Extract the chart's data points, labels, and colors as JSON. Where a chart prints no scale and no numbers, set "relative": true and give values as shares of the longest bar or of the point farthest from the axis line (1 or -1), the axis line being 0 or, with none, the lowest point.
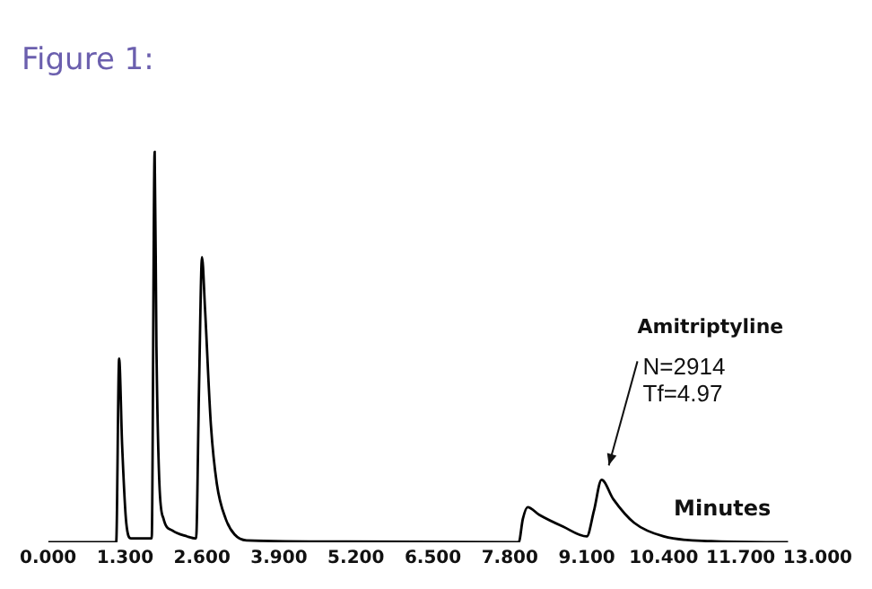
{
  "chart_data": {
    "type": "line",
    "title": "Figure 1:",
    "xlabel": "Minutes",
    "relative": true,
    "color": "#000000",
    "x": [
      0,
      1.15,
      1.2,
      1.25,
      1.32,
      1.4,
      1.75,
      1.8,
      1.83,
      1.88,
      1.95,
      2.1,
      2.35,
      2.5,
      2.55,
      2.6,
      2.65,
      2.75,
      2.85,
      3.0,
      3.15,
      3.35,
      5,
      7.95,
      8.02,
      8.1,
      8.3,
      8.7,
      9.1,
      9.22,
      9.35,
      9.55,
      9.9,
      10.4,
      11.2,
      12.5
    ],
    "values": [
      0,
      0,
      0.47,
      0.25,
      0.05,
      0.01,
      0.01,
      1.0,
      0.5,
      0.15,
      0.06,
      0.03,
      0.015,
      0.01,
      0.4,
      0.73,
      0.6,
      0.3,
      0.15,
      0.06,
      0.02,
      0.005,
      0.002,
      0,
      0.06,
      0.09,
      0.07,
      0.04,
      0.015,
      0.08,
      0.16,
      0.11,
      0.05,
      0.015,
      0.003,
      0
    ],
    "xlim": [
      0,
      13
    ],
    "xticks": [
      {
        "value": 0,
        "label": "0.000"
      },
      {
        "value": 1.3,
        "label": "1.300"
      },
      {
        "value": 2.6,
        "label": "2.600"
      },
      {
        "value": 3.9,
        "label": "3.900"
      },
      {
        "value": 5.2,
        "label": "5.200"
      },
      {
        "value": 6.5,
        "label": "6.500"
      },
      {
        "value": 7.8,
        "label": "7.800"
      },
      {
        "value": 9.1,
        "label": "9.100"
      },
      {
        "value": 10.4,
        "label": "10.400"
      },
      {
        "value": 11.7,
        "label": "11.700"
      },
      {
        "value": 13,
        "label": "13.000"
      }
    ],
    "annotations": [
      {
        "text": "Amitriptyline\nN=2914\nTf=4.97",
        "x": 9.35,
        "y": 0.16
      }
    ],
    "grid": false,
    "legend": false,
    "marker": "none",
    "line_style": "solid"
  }
}
